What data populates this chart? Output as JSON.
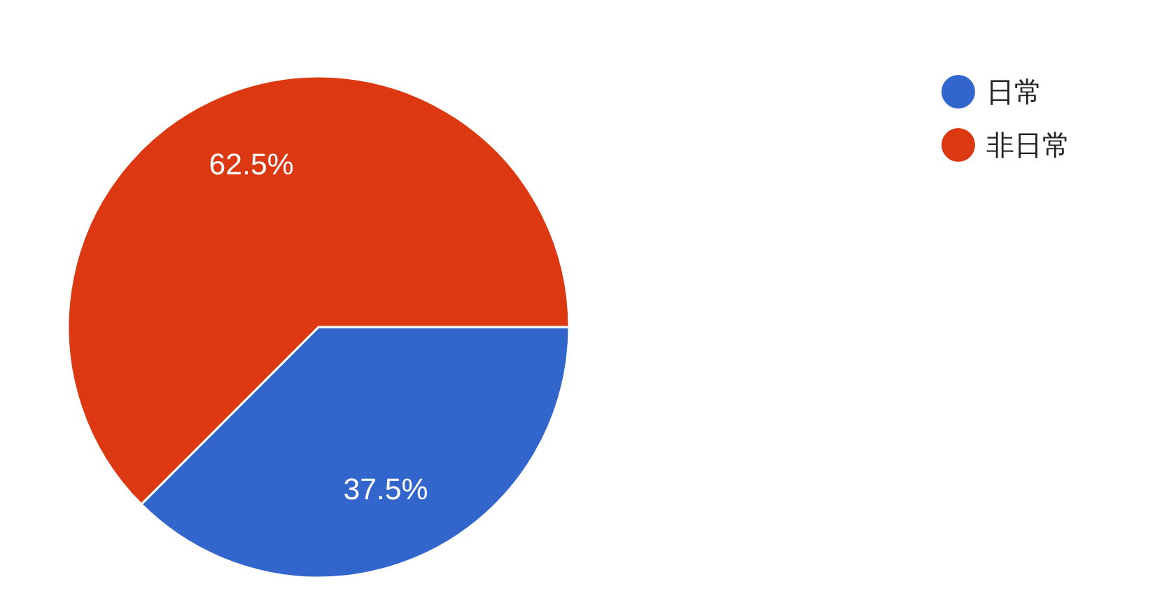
{
  "chart_data": {
    "type": "pie",
    "categories": [
      "日常",
      "非日常"
    ],
    "values": [
      37.5,
      62.5
    ],
    "colors": [
      "#3366cc",
      "#dc3912"
    ],
    "data_labels": true,
    "value_labels": [
      "37.5%",
      "62.5%"
    ],
    "legend": "top right"
  }
}
